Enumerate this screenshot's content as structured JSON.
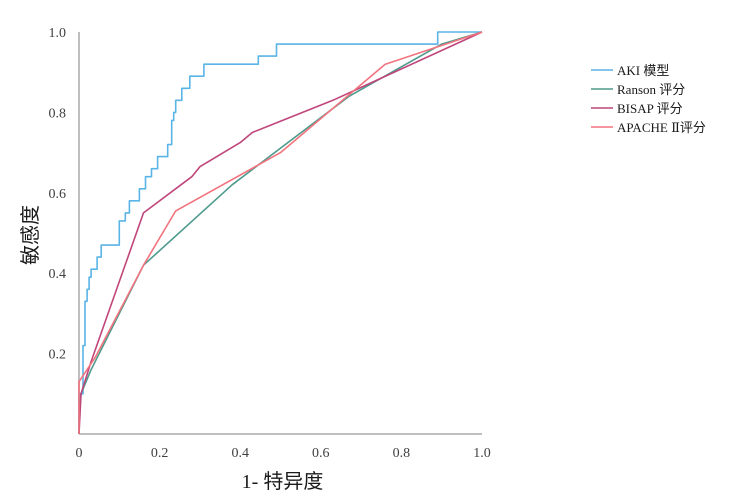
{
  "chart_data": {
    "type": "line",
    "xlabel": "1- 特异度",
    "ylabel": "敏感度",
    "xlim": [
      0,
      1
    ],
    "ylim": [
      0,
      1
    ],
    "x_ticks": [
      "0",
      "0.2",
      "0.4",
      "0.6",
      "0.8",
      "1.0"
    ],
    "y_ticks": [
      "0.2",
      "0.4",
      "0.6",
      "0.8",
      "1.0"
    ],
    "grid": false,
    "legend_position": "right",
    "series": [
      {
        "name": "AKI 模型",
        "color": "#5ab4e6",
        "step": true,
        "points": [
          [
            0,
            0
          ],
          [
            0,
            0.1
          ],
          [
            0.01,
            0.1
          ],
          [
            0.01,
            0.22
          ],
          [
            0.015,
            0.22
          ],
          [
            0.015,
            0.33
          ],
          [
            0.02,
            0.33
          ],
          [
            0.02,
            0.36
          ],
          [
            0.025,
            0.36
          ],
          [
            0.025,
            0.39
          ],
          [
            0.03,
            0.39
          ],
          [
            0.03,
            0.41
          ],
          [
            0.045,
            0.41
          ],
          [
            0.045,
            0.44
          ],
          [
            0.055,
            0.44
          ],
          [
            0.055,
            0.47
          ],
          [
            0.1,
            0.47
          ],
          [
            0.1,
            0.53
          ],
          [
            0.115,
            0.53
          ],
          [
            0.115,
            0.55
          ],
          [
            0.125,
            0.55
          ],
          [
            0.125,
            0.58
          ],
          [
            0.15,
            0.58
          ],
          [
            0.15,
            0.61
          ],
          [
            0.165,
            0.61
          ],
          [
            0.165,
            0.64
          ],
          [
            0.18,
            0.64
          ],
          [
            0.18,
            0.66
          ],
          [
            0.195,
            0.66
          ],
          [
            0.195,
            0.69
          ],
          [
            0.22,
            0.69
          ],
          [
            0.22,
            0.72
          ],
          [
            0.23,
            0.72
          ],
          [
            0.23,
            0.78
          ],
          [
            0.235,
            0.78
          ],
          [
            0.235,
            0.8
          ],
          [
            0.24,
            0.8
          ],
          [
            0.24,
            0.83
          ],
          [
            0.255,
            0.83
          ],
          [
            0.255,
            0.86
          ],
          [
            0.275,
            0.86
          ],
          [
            0.275,
            0.89
          ],
          [
            0.31,
            0.89
          ],
          [
            0.31,
            0.92
          ],
          [
            0.445,
            0.92
          ],
          [
            0.445,
            0.94
          ],
          [
            0.49,
            0.94
          ],
          [
            0.49,
            0.97
          ],
          [
            0.89,
            0.97
          ],
          [
            0.89,
            1.0
          ],
          [
            1.0,
            1.0
          ]
        ]
      },
      {
        "name": "Ranson 评分",
        "color": "#4e9a8c",
        "step": false,
        "points": [
          [
            0,
            0
          ],
          [
            0,
            0.04
          ],
          [
            0.005,
            0.1
          ],
          [
            0.03,
            0.16
          ],
          [
            0.16,
            0.42
          ],
          [
            0.38,
            0.62
          ],
          [
            0.67,
            0.84
          ],
          [
            0.9,
            0.97
          ],
          [
            1.0,
            1.0
          ]
        ]
      },
      {
        "name": "BISAP 评分",
        "color": "#c0457a",
        "step": false,
        "points": [
          [
            0,
            0
          ],
          [
            0.005,
            0.1
          ],
          [
            0.03,
            0.18
          ],
          [
            0.16,
            0.55
          ],
          [
            0.28,
            0.64
          ],
          [
            0.3,
            0.665
          ],
          [
            0.4,
            0.725
          ],
          [
            0.43,
            0.75
          ],
          [
            0.63,
            0.83
          ],
          [
            1.0,
            1.0
          ]
        ]
      },
      {
        "name": "APACHE Ⅱ评分",
        "color": "#f2737e",
        "step": false,
        "points": [
          [
            0,
            0
          ],
          [
            0,
            0.13
          ],
          [
            0.04,
            0.19
          ],
          [
            0.16,
            0.42
          ],
          [
            0.24,
            0.555
          ],
          [
            0.5,
            0.7
          ],
          [
            0.76,
            0.92
          ],
          [
            1.0,
            1.0
          ]
        ]
      }
    ]
  }
}
